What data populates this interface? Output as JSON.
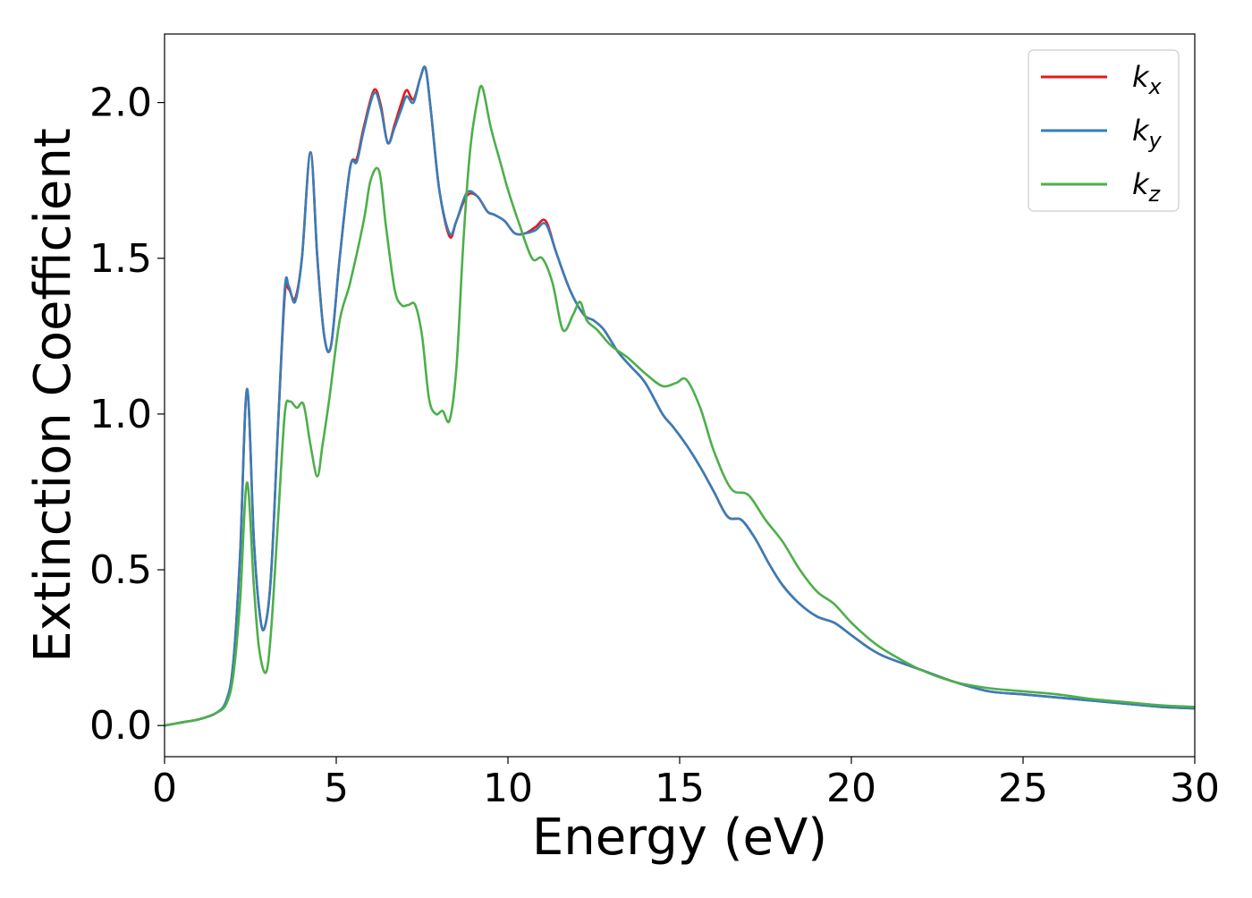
{
  "chart_data": {
    "type": "line",
    "xlabel": "Energy (eV)",
    "ylabel": "Extinction Coefficient",
    "xlim": [
      0,
      30
    ],
    "ylim": [
      -0.1,
      2.22
    ],
    "xticks": [
      0,
      5,
      10,
      15,
      20,
      25,
      30
    ],
    "xtick_labels": [
      "0",
      "5",
      "10",
      "15",
      "20",
      "25",
      "30"
    ],
    "yticks": [
      0.0,
      0.5,
      1.0,
      1.5,
      2.0
    ],
    "ytick_labels": [
      "0.0",
      "0.5",
      "1.0",
      "1.5",
      "2.0"
    ],
    "grid": false,
    "legend_position": "top-right",
    "series": [
      {
        "name": "k_x",
        "label_main": "k",
        "label_sub": "x",
        "color": "#e41a1c",
        "x": [
          0,
          0.5,
          1.0,
          1.5,
          1.8,
          2.0,
          2.2,
          2.4,
          2.6,
          2.75,
          2.9,
          3.1,
          3.3,
          3.5,
          3.62,
          3.8,
          4.0,
          4.25,
          4.45,
          4.65,
          4.85,
          5.1,
          5.4,
          5.6,
          5.8,
          6.1,
          6.3,
          6.5,
          6.7,
          6.9,
          7.05,
          7.25,
          7.45,
          7.6,
          7.75,
          8.0,
          8.3,
          8.5,
          8.8,
          9.1,
          9.4,
          9.6,
          9.9,
          10.2,
          10.5,
          10.8,
          11.1,
          11.4,
          11.8,
          12.2,
          12.5,
          12.8,
          13.2,
          13.6,
          14.0,
          14.5,
          14.8,
          15.2,
          15.6,
          16.0,
          16.4,
          16.8,
          17.2,
          17.6,
          18.0,
          18.5,
          19.0,
          19.5,
          20.0,
          20.5,
          21.0,
          22.0,
          23.0,
          24.0,
          25.0,
          26.0,
          27.0,
          28.0,
          29.0,
          30.0
        ],
        "values": [
          0.0,
          0.01,
          0.02,
          0.04,
          0.08,
          0.2,
          0.55,
          1.08,
          0.6,
          0.38,
          0.31,
          0.48,
          0.95,
          1.38,
          1.4,
          1.37,
          1.5,
          1.84,
          1.5,
          1.25,
          1.22,
          1.5,
          1.79,
          1.82,
          1.92,
          2.04,
          1.99,
          1.87,
          1.93,
          2.0,
          2.04,
          2.01,
          2.08,
          2.11,
          1.98,
          1.72,
          1.57,
          1.62,
          1.7,
          1.7,
          1.65,
          1.64,
          1.62,
          1.58,
          1.58,
          1.6,
          1.62,
          1.52,
          1.4,
          1.32,
          1.3,
          1.27,
          1.2,
          1.15,
          1.1,
          1.0,
          0.96,
          0.9,
          0.83,
          0.75,
          0.67,
          0.66,
          0.6,
          0.52,
          0.45,
          0.39,
          0.35,
          0.33,
          0.29,
          0.25,
          0.22,
          0.18,
          0.14,
          0.11,
          0.1,
          0.09,
          0.08,
          0.07,
          0.06,
          0.055
        ]
      },
      {
        "name": "k_y",
        "label_main": "k",
        "label_sub": "y",
        "color": "#377eb8",
        "x": [
          0,
          0.5,
          1.0,
          1.5,
          1.8,
          2.0,
          2.2,
          2.4,
          2.6,
          2.75,
          2.9,
          3.1,
          3.3,
          3.5,
          3.62,
          3.8,
          4.0,
          4.25,
          4.45,
          4.65,
          4.85,
          5.1,
          5.4,
          5.6,
          5.8,
          6.1,
          6.3,
          6.5,
          6.7,
          6.9,
          7.05,
          7.25,
          7.45,
          7.6,
          7.75,
          8.0,
          8.3,
          8.5,
          8.8,
          9.1,
          9.4,
          9.6,
          9.9,
          10.2,
          10.5,
          10.8,
          11.1,
          11.4,
          11.8,
          12.2,
          12.5,
          12.8,
          13.2,
          13.6,
          14.0,
          14.5,
          14.8,
          15.2,
          15.6,
          16.0,
          16.4,
          16.8,
          17.2,
          17.6,
          18.0,
          18.5,
          19.0,
          19.5,
          20.0,
          20.5,
          21.0,
          22.0,
          23.0,
          24.0,
          25.0,
          26.0,
          27.0,
          28.0,
          29.0,
          30.0
        ],
        "values": [
          0.0,
          0.01,
          0.02,
          0.04,
          0.08,
          0.2,
          0.55,
          1.08,
          0.6,
          0.38,
          0.31,
          0.48,
          0.95,
          1.4,
          1.41,
          1.36,
          1.5,
          1.84,
          1.5,
          1.25,
          1.22,
          1.5,
          1.79,
          1.81,
          1.91,
          2.03,
          1.98,
          1.87,
          1.92,
          1.98,
          2.02,
          2.0,
          2.08,
          2.11,
          1.98,
          1.72,
          1.58,
          1.62,
          1.71,
          1.7,
          1.65,
          1.64,
          1.62,
          1.58,
          1.58,
          1.59,
          1.61,
          1.52,
          1.4,
          1.32,
          1.3,
          1.27,
          1.2,
          1.15,
          1.1,
          1.0,
          0.96,
          0.9,
          0.83,
          0.75,
          0.67,
          0.66,
          0.6,
          0.52,
          0.45,
          0.39,
          0.35,
          0.33,
          0.29,
          0.25,
          0.22,
          0.18,
          0.14,
          0.11,
          0.1,
          0.09,
          0.08,
          0.07,
          0.06,
          0.055
        ]
      },
      {
        "name": "k_z",
        "label_main": "k",
        "label_sub": "z",
        "color": "#4daf4a",
        "x": [
          0,
          0.5,
          1.0,
          1.5,
          1.8,
          2.0,
          2.2,
          2.4,
          2.6,
          2.75,
          2.95,
          3.1,
          3.3,
          3.5,
          3.65,
          3.85,
          4.05,
          4.25,
          4.45,
          4.6,
          4.8,
          5.1,
          5.4,
          5.8,
          6.0,
          6.25,
          6.45,
          6.7,
          6.9,
          7.1,
          7.3,
          7.5,
          7.7,
          7.9,
          8.1,
          8.3,
          8.5,
          8.7,
          8.9,
          9.1,
          9.25,
          9.5,
          9.8,
          10.0,
          10.3,
          10.7,
          11.0,
          11.3,
          11.6,
          11.9,
          12.1,
          12.3,
          12.6,
          13.0,
          13.5,
          14.0,
          14.5,
          14.9,
          15.2,
          15.6,
          16.0,
          16.5,
          17.0,
          17.5,
          18.0,
          18.5,
          19.0,
          19.5,
          20.0,
          20.5,
          21.0,
          22.0,
          23.0,
          24.0,
          25.0,
          26.0,
          27.0,
          28.0,
          29.0,
          30.0
        ],
        "values": [
          0.0,
          0.01,
          0.02,
          0.04,
          0.07,
          0.16,
          0.4,
          0.78,
          0.45,
          0.25,
          0.17,
          0.3,
          0.65,
          1.0,
          1.04,
          1.02,
          1.03,
          0.9,
          0.8,
          0.9,
          1.05,
          1.3,
          1.42,
          1.62,
          1.75,
          1.78,
          1.6,
          1.4,
          1.35,
          1.35,
          1.35,
          1.25,
          1.05,
          1.0,
          1.01,
          0.98,
          1.15,
          1.55,
          1.85,
          2.0,
          2.05,
          1.92,
          1.8,
          1.72,
          1.62,
          1.5,
          1.5,
          1.42,
          1.27,
          1.32,
          1.36,
          1.3,
          1.27,
          1.22,
          1.18,
          1.13,
          1.09,
          1.1,
          1.11,
          1.02,
          0.88,
          0.76,
          0.74,
          0.66,
          0.59,
          0.5,
          0.43,
          0.39,
          0.33,
          0.28,
          0.24,
          0.18,
          0.14,
          0.12,
          0.11,
          0.1,
          0.085,
          0.075,
          0.065,
          0.06
        ]
      }
    ]
  }
}
